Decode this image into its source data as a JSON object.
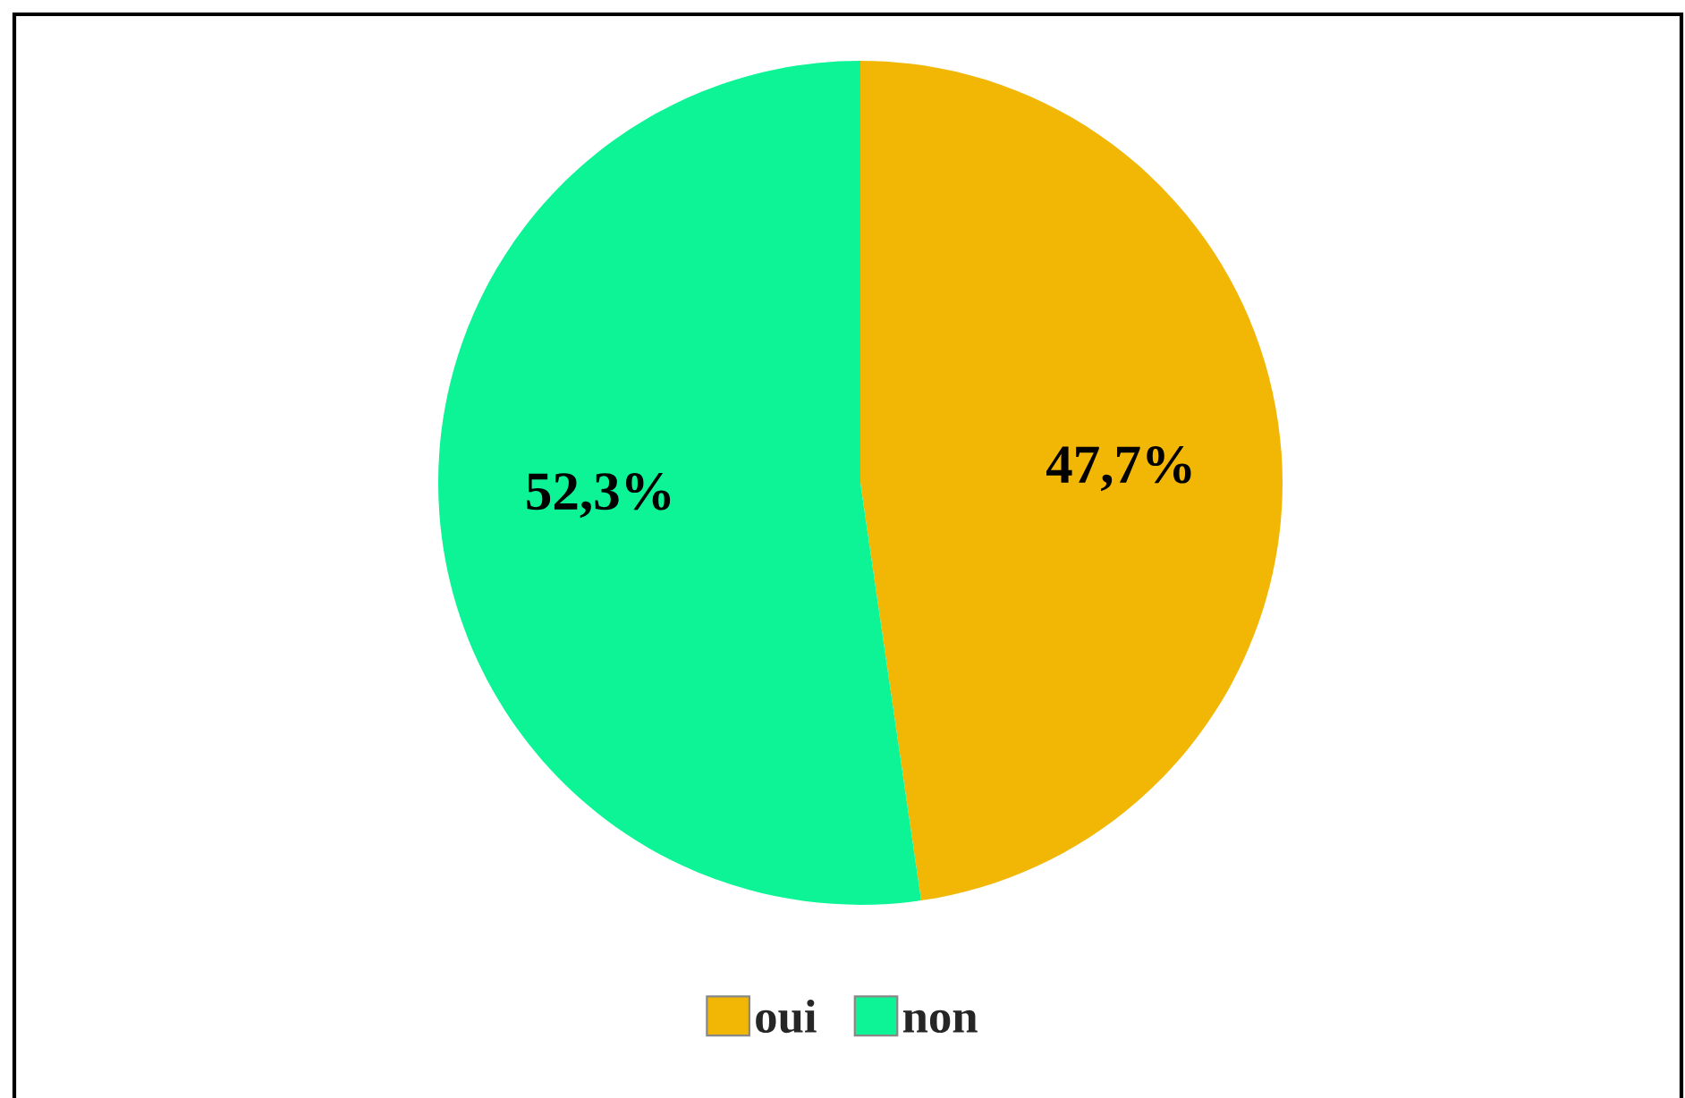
{
  "chart_data": {
    "type": "pie",
    "categories": [
      "oui",
      "non"
    ],
    "values": [
      47.7,
      52.3
    ],
    "colors": [
      "#f2b705",
      "#0cf496"
    ],
    "value_labels": [
      "47,7%",
      "52,3%"
    ],
    "legend": "bottom"
  }
}
